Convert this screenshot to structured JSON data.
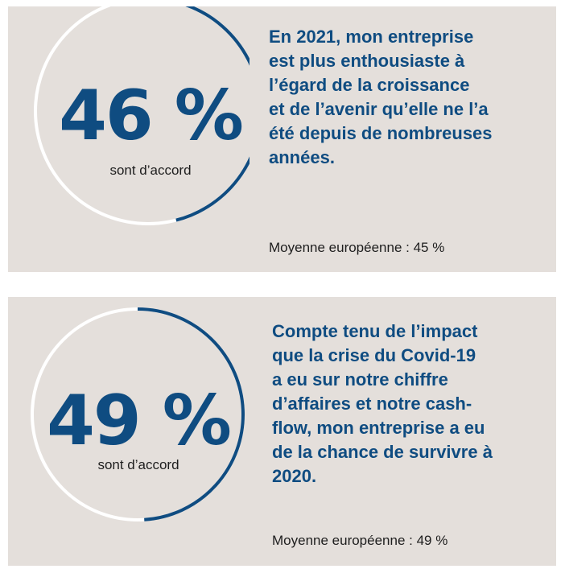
{
  "colors": {
    "accent": "#0f4c81",
    "background": "#e4dfdb",
    "ring_track": "#ffffff"
  },
  "chart_data": [
    {
      "type": "pie",
      "categories": [
        "sont d’accord"
      ],
      "values": [
        46
      ],
      "value_label": "46 %",
      "caption": "sont d’accord",
      "statement_lines": [
        "En 2021, mon entreprise",
        "est plus enthousiaste à",
        "l’égard de la croissance",
        "et de l’avenir qu’elle ne l’a",
        "été depuis de nombreuses",
        "années."
      ],
      "average_label": "Moyenne européenne : 45 %"
    },
    {
      "type": "pie",
      "categories": [
        "sont d’accord"
      ],
      "values": [
        49
      ],
      "value_label": "49 %",
      "caption": "sont d’accord",
      "statement_lines": [
        "Compte tenu de l’impact",
        "que la crise du Covid-19",
        "a eu sur notre chiffre",
        "d’affaires et notre cash-",
        "flow, mon entreprise a eu",
        "de la chance de survivre à",
        "2020."
      ],
      "average_label": "Moyenne européenne : 49 %"
    }
  ]
}
